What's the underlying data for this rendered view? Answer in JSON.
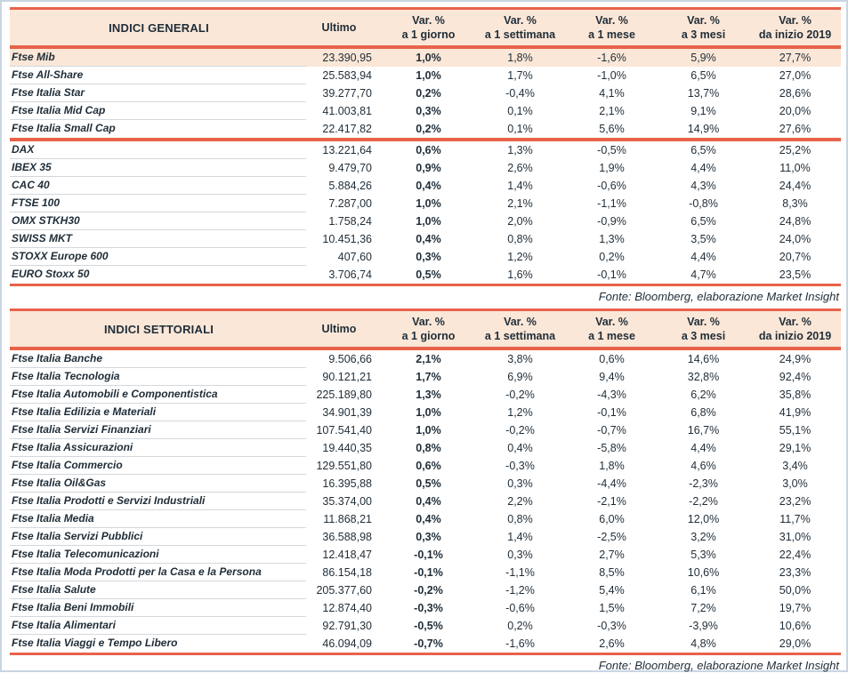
{
  "colors": {
    "accent_line": "#e8624a",
    "header_bg": "#fbe7d8",
    "row_highlight_bg": "#fbe7d8",
    "text": "#1f2d38",
    "separator": "#d3d8dd",
    "outer_frame": "#c8d5e3"
  },
  "fonte": "Fonte: Bloomberg, elaborazione Market Insight",
  "tables": [
    {
      "title": "INDICI GENERALI",
      "ultimo_label": "Ultimo",
      "var_headers": [
        [
          "Var. %",
          "a 1 giorno"
        ],
        [
          "Var. %",
          "a 1 settimana"
        ],
        [
          "Var. %",
          "a 1 mese"
        ],
        [
          "Var. %",
          "a 3 mesi"
        ],
        [
          "Var. %",
          "da inizio 2019"
        ]
      ],
      "sections": [
        [
          {
            "name": "Ftse Mib",
            "ultimo": "23.390,95",
            "vars": [
              "1,0%",
              "1,8%",
              "-1,6%",
              "5,9%",
              "27,7%"
            ],
            "hl": true
          },
          {
            "name": "Ftse All-Share",
            "ultimo": "25.583,94",
            "vars": [
              "1,0%",
              "1,7%",
              "-1,0%",
              "6,5%",
              "27,0%"
            ]
          },
          {
            "name": "Ftse Italia Star",
            "ultimo": "39.277,70",
            "vars": [
              "0,2%",
              "-0,4%",
              "4,1%",
              "13,7%",
              "28,6%"
            ]
          },
          {
            "name": "Ftse Italia Mid Cap",
            "ultimo": "41.003,81",
            "vars": [
              "0,3%",
              "0,1%",
              "2,1%",
              "9,1%",
              "20,0%"
            ]
          },
          {
            "name": "Ftse Italia Small Cap",
            "ultimo": "22.417,82",
            "vars": [
              "0,2%",
              "0,1%",
              "5,6%",
              "14,9%",
              "27,6%"
            ]
          }
        ],
        [
          {
            "name": "DAX",
            "ultimo": "13.221,64",
            "vars": [
              "0,6%",
              "1,3%",
              "-0,5%",
              "6,5%",
              "25,2%"
            ]
          },
          {
            "name": "IBEX 35",
            "ultimo": "9.479,70",
            "vars": [
              "0,9%",
              "2,6%",
              "1,9%",
              "4,4%",
              "11,0%"
            ]
          },
          {
            "name": "CAC 40",
            "ultimo": "5.884,26",
            "vars": [
              "0,4%",
              "1,4%",
              "-0,6%",
              "4,3%",
              "24,4%"
            ]
          },
          {
            "name": "FTSE 100",
            "ultimo": "7.287,00",
            "vars": [
              "1,0%",
              "2,1%",
              "-1,1%",
              "-0,8%",
              "8,3%"
            ]
          },
          {
            "name": "OMX STKH30",
            "ultimo": "1.758,24",
            "vars": [
              "1,0%",
              "2,0%",
              "-0,9%",
              "6,5%",
              "24,8%"
            ]
          },
          {
            "name": "SWISS MKT",
            "ultimo": "10.451,36",
            "vars": [
              "0,4%",
              "0,8%",
              "1,3%",
              "3,5%",
              "24,0%"
            ]
          },
          {
            "name": "STOXX Europe 600",
            "ultimo": "407,60",
            "vars": [
              "0,3%",
              "1,2%",
              "0,2%",
              "4,4%",
              "20,7%"
            ]
          },
          {
            "name": "EURO Stoxx 50",
            "ultimo": "3.706,74",
            "vars": [
              "0,5%",
              "1,6%",
              "-0,1%",
              "4,7%",
              "23,5%"
            ]
          }
        ]
      ]
    },
    {
      "title": "INDICI SETTORIALI",
      "ultimo_label": "Ultimo",
      "var_headers": [
        [
          "Var. %",
          "a 1 giorno"
        ],
        [
          "Var. %",
          "a 1 settimana"
        ],
        [
          "Var. %",
          "a 1 mese"
        ],
        [
          "Var. %",
          "a 3 mesi"
        ],
        [
          "Var. %",
          "da inizio 2019"
        ]
      ],
      "sections": [
        [
          {
            "name": "Ftse Italia Banche",
            "ultimo": "9.506,66",
            "vars": [
              "2,1%",
              "3,8%",
              "0,6%",
              "14,6%",
              "24,9%"
            ]
          },
          {
            "name": "Ftse Italia Tecnologia",
            "ultimo": "90.121,21",
            "vars": [
              "1,7%",
              "6,9%",
              "9,4%",
              "32,8%",
              "92,4%"
            ]
          },
          {
            "name": "Ftse Italia Automobili e Componentistica",
            "ultimo": "225.189,80",
            "vars": [
              "1,3%",
              "-0,2%",
              "-4,3%",
              "6,2%",
              "35,8%"
            ]
          },
          {
            "name": "Ftse Italia Edilizia e Materiali",
            "ultimo": "34.901,39",
            "vars": [
              "1,0%",
              "1,2%",
              "-0,1%",
              "6,8%",
              "41,9%"
            ]
          },
          {
            "name": "Ftse Italia Servizi Finanziari",
            "ultimo": "107.541,40",
            "vars": [
              "1,0%",
              "-0,2%",
              "-0,7%",
              "16,7%",
              "55,1%"
            ]
          },
          {
            "name": "Ftse Italia Assicurazioni",
            "ultimo": "19.440,35",
            "vars": [
              "0,8%",
              "0,4%",
              "-5,8%",
              "4,4%",
              "29,1%"
            ]
          },
          {
            "name": "Ftse Italia Commercio",
            "ultimo": "129.551,80",
            "vars": [
              "0,6%",
              "-0,3%",
              "1,8%",
              "4,6%",
              "3,4%"
            ]
          },
          {
            "name": "Ftse Italia Oil&Gas",
            "ultimo": "16.395,88",
            "vars": [
              "0,5%",
              "0,3%",
              "-4,4%",
              "-2,3%",
              "3,0%"
            ]
          },
          {
            "name": "Ftse Italia Prodotti e Servizi Industriali",
            "ultimo": "35.374,00",
            "vars": [
              "0,4%",
              "2,2%",
              "-2,1%",
              "-2,2%",
              "23,2%"
            ]
          },
          {
            "name": "Ftse Italia Media",
            "ultimo": "11.868,21",
            "vars": [
              "0,4%",
              "0,8%",
              "6,0%",
              "12,0%",
              "11,7%"
            ]
          },
          {
            "name": "Ftse Italia Servizi Pubblici",
            "ultimo": "36.588,98",
            "vars": [
              "0,3%",
              "1,4%",
              "-2,5%",
              "3,2%",
              "31,0%"
            ]
          },
          {
            "name": "Ftse Italia Telecomunicazioni",
            "ultimo": "12.418,47",
            "vars": [
              "-0,1%",
              "0,3%",
              "2,7%",
              "5,3%",
              "22,4%"
            ]
          },
          {
            "name": "Ftse Italia Moda Prodotti per la Casa e la Persona",
            "ultimo": "86.154,18",
            "vars": [
              "-0,1%",
              "-1,1%",
              "8,5%",
              "10,6%",
              "23,3%"
            ]
          },
          {
            "name": "Ftse Italia Salute",
            "ultimo": "205.377,60",
            "vars": [
              "-0,2%",
              "-1,2%",
              "5,4%",
              "6,1%",
              "50,0%"
            ]
          },
          {
            "name": "Ftse Italia Beni Immobili",
            "ultimo": "12.874,40",
            "vars": [
              "-0,3%",
              "-0,6%",
              "1,5%",
              "7,2%",
              "19,7%"
            ]
          },
          {
            "name": "Ftse Italia Alimentari",
            "ultimo": "92.791,30",
            "vars": [
              "-0,5%",
              "0,2%",
              "-0,3%",
              "-3,9%",
              "10,6%"
            ]
          },
          {
            "name": "Ftse Italia Viaggi e Tempo Libero",
            "ultimo": "46.094,09",
            "vars": [
              "-0,7%",
              "-1,6%",
              "2,6%",
              "4,8%",
              "29,0%"
            ]
          }
        ]
      ]
    }
  ]
}
